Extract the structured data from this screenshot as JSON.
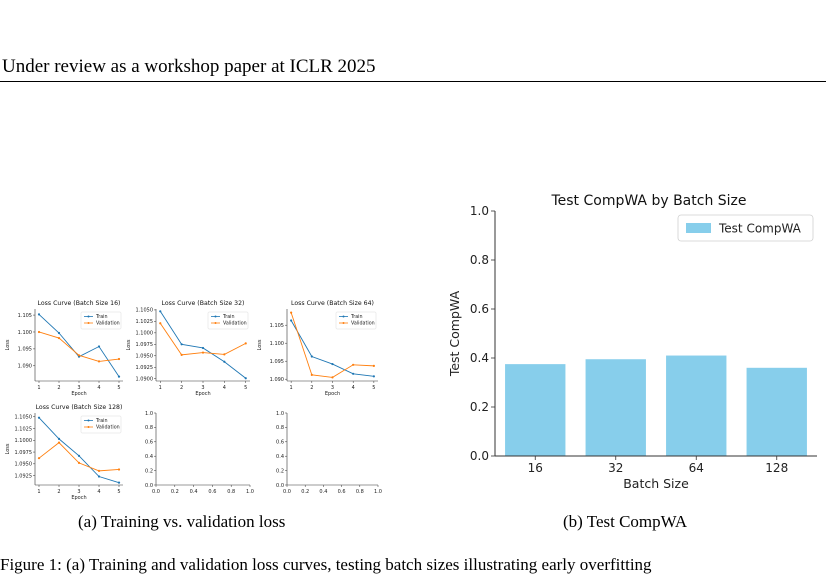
{
  "page": {
    "running_header": "Under review as a workshop paper at ICLR 2025",
    "caption_a": "(a)  Training vs. validation loss",
    "caption_b": "(b)  Test CompWA",
    "figure_caption_fragment": "Figure 1: (a) Training and validation loss curves, testing batch sizes illustrating early overfitting"
  },
  "colors": {
    "train": "#1f77b4",
    "validation": "#ff7f0e",
    "bar": "#87ceeb"
  },
  "chart_data": [
    {
      "type": "line",
      "title": "Loss Curve (Batch Size 16)",
      "xlabel": "Epoch",
      "ylabel": "Loss",
      "x": [
        1,
        2,
        3,
        4,
        5
      ],
      "xlim": [
        0.8,
        5.2
      ],
      "ylim": [
        1.0855,
        1.1068
      ],
      "yticks": [
        1.09,
        1.095,
        1.1,
        1.105
      ],
      "ytick_labels": [
        "1.090",
        "1.095",
        "1.100",
        "1.105"
      ],
      "series": [
        {
          "name": "Train",
          "values": [
            1.1052,
            1.0997,
            1.0927,
            1.0957,
            1.0868
          ]
        },
        {
          "name": "Validation",
          "values": [
            1.1,
            1.0982,
            1.0931,
            1.0913,
            1.092
          ]
        }
      ],
      "legend": "top-right"
    },
    {
      "type": "line",
      "title": "Loss Curve (Batch Size 32)",
      "xlabel": "Epoch",
      "ylabel": "Loss",
      "x": [
        1,
        2,
        3,
        4,
        5
      ],
      "xlim": [
        0.8,
        5.2
      ],
      "ylim": [
        1.0895,
        1.1052
      ],
      "yticks": [
        1.09,
        1.0925,
        1.095,
        1.0975,
        1.1,
        1.1025,
        1.105
      ],
      "ytick_labels": [
        "1.0900",
        "1.0925",
        "1.0950",
        "1.0975",
        "1.1000",
        "1.1025",
        "1.1050"
      ],
      "series": [
        {
          "name": "Train",
          "values": [
            1.1047,
            1.0975,
            1.0967,
            1.0937,
            1.0901
          ]
        },
        {
          "name": "Validation",
          "values": [
            1.1021,
            1.0952,
            1.0957,
            1.0953,
            1.0977
          ]
        }
      ],
      "legend": "top-right"
    },
    {
      "type": "line",
      "title": "Loss Curve (Batch Size 64)",
      "xlabel": "Epoch",
      "ylabel": "Loss",
      "x": [
        1,
        2,
        3,
        4,
        5
      ],
      "xlim": [
        0.8,
        5.2
      ],
      "ylim": [
        1.0895,
        1.1095
      ],
      "yticks": [
        1.09,
        1.095,
        1.1,
        1.105
      ],
      "ytick_labels": [
        "1.090",
        "1.095",
        "1.100",
        "1.105"
      ],
      "series": [
        {
          "name": "Train",
          "values": [
            1.1063,
            1.0963,
            1.0942,
            1.0915,
            1.0908
          ]
        },
        {
          "name": "Validation",
          "values": [
            1.1085,
            1.0912,
            1.0905,
            1.094,
            1.0937
          ]
        }
      ],
      "legend": "top-right"
    },
    {
      "type": "line",
      "title": "Loss Curve (Batch Size 128)",
      "xlabel": "Epoch",
      "ylabel": "Loss",
      "x": [
        1,
        2,
        3,
        4,
        5
      ],
      "xlim": [
        0.8,
        5.2
      ],
      "ylim": [
        1.0905,
        1.1058
      ],
      "yticks": [
        1.0925,
        1.095,
        1.0975,
        1.1,
        1.1025,
        1.105
      ],
      "ytick_labels": [
        "1.0925",
        "1.0950",
        "1.0975",
        "1.1000",
        "1.1025",
        "1.1050"
      ],
      "series": [
        {
          "name": "Train",
          "values": [
            1.1048,
            1.1003,
            1.0967,
            1.0923,
            1.091
          ]
        },
        {
          "name": "Validation",
          "values": [
            1.0962,
            1.0995,
            1.0952,
            1.0935,
            1.0938
          ]
        }
      ],
      "legend": "top-right"
    },
    {
      "type": "line",
      "title": "",
      "series": [],
      "xlim": [
        0,
        1
      ],
      "ylim": [
        0,
        1
      ],
      "xticks": [
        0,
        0.2,
        0.4,
        0.6,
        0.8,
        1.0
      ],
      "xtick_labels": [
        "0.0",
        "0.2",
        "0.4",
        "0.6",
        "0.8",
        "1.0"
      ],
      "yticks": [
        0,
        0.2,
        0.4,
        0.6,
        0.8,
        1.0
      ],
      "ytick_labels": [
        "0.0",
        "0.2",
        "0.4",
        "0.6",
        "0.8",
        "1.0"
      ]
    },
    {
      "type": "line",
      "title": "",
      "series": [],
      "xlim": [
        0,
        1
      ],
      "ylim": [
        0,
        1
      ],
      "xticks": [
        0,
        0.2,
        0.4,
        0.6,
        0.8,
        1.0
      ],
      "xtick_labels": [
        "0.0",
        "0.2",
        "0.4",
        "0.6",
        "0.8",
        "1.0"
      ],
      "yticks": [
        0,
        0.2,
        0.4,
        0.6,
        0.8,
        1.0
      ],
      "ytick_labels": [
        "0.0",
        "0.2",
        "0.4",
        "0.6",
        "0.8",
        "1.0"
      ]
    },
    {
      "type": "bar",
      "title": "Test CompWA by Batch Size",
      "xlabel": "Batch Size",
      "ylabel": "Test CompWA",
      "categories": [
        "16",
        "32",
        "64",
        "128"
      ],
      "values": [
        0.375,
        0.395,
        0.41,
        0.36
      ],
      "ylim": [
        0,
        1.0
      ],
      "yticks": [
        0,
        0.2,
        0.4,
        0.6,
        0.8,
        1.0
      ],
      "ytick_labels": [
        "0.0",
        "0.2",
        "0.4",
        "0.6",
        "0.8",
        "1.0"
      ],
      "series_name": "Test CompWA",
      "legend": "top-right",
      "grid": false
    }
  ]
}
